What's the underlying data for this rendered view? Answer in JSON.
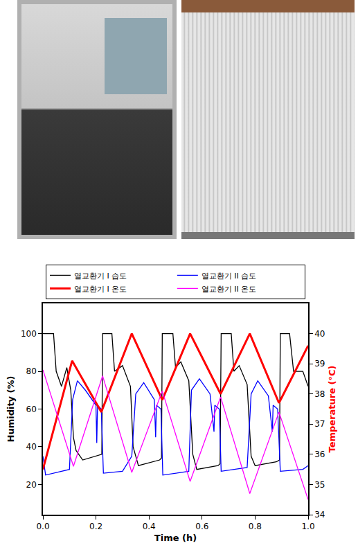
{
  "chart_data": {
    "type": "line",
    "x_label": "Time (h)",
    "y_label": "Humidity (%)",
    "y2_label": "Temperature (°C)",
    "xlim": [
      0,
      1
    ],
    "xticks": [
      {
        "value": 0,
        "label": "0.0"
      },
      {
        "value": 0.2,
        "label": "0.2"
      },
      {
        "value": 0.4,
        "label": "0.4"
      },
      {
        "value": 0.6,
        "label": "0.6"
      },
      {
        "value": 0.8,
        "label": "0.8"
      },
      {
        "value": 1,
        "label": "1.0"
      }
    ],
    "ylim": [
      4,
      116
    ],
    "yticks": [
      20,
      40,
      60,
      80,
      100
    ],
    "y2lim": [
      34,
      41
    ],
    "y2ticks": [
      34,
      35,
      36,
      37,
      38,
      39,
      40
    ],
    "grid": false,
    "legend": "top",
    "series": [
      {
        "name": "열교환기 I 습도",
        "color": "#000000",
        "x": [
          0,
          0.04,
          0.05,
          0.07,
          0.09,
          0.105,
          0.115,
          0.125,
          0.15,
          0.2,
          0.222,
          0.225,
          0.26,
          0.27,
          0.3,
          0.33,
          0.34,
          0.36,
          0.44,
          0.447,
          0.45,
          0.49,
          0.5,
          0.52,
          0.55,
          0.565,
          0.58,
          0.66,
          0.668,
          0.672,
          0.71,
          0.72,
          0.74,
          0.77,
          0.785,
          0.8,
          0.88,
          0.892,
          0.895,
          0.93,
          0.945,
          0.98,
          1.0
        ],
        "values": [
          100,
          100,
          80,
          72,
          82,
          70,
          45,
          38,
          33,
          35,
          36,
          100,
          100,
          80,
          83,
          72,
          40,
          30,
          33,
          34,
          100,
          100,
          82,
          85,
          75,
          36,
          28,
          30,
          31,
          100,
          100,
          80,
          83,
          73,
          35,
          30,
          32,
          33,
          100,
          100,
          80,
          80,
          72
        ]
      },
      {
        "name": "열교환기 II 습도",
        "color": "#0000ff",
        "x": [
          0,
          0.01,
          0.1,
          0.112,
          0.13,
          0.16,
          0.2,
          0.203,
          0.206,
          0.22,
          0.228,
          0.3,
          0.335,
          0.35,
          0.38,
          0.42,
          0.425,
          0.428,
          0.445,
          0.452,
          0.55,
          0.56,
          0.59,
          0.63,
          0.645,
          0.648,
          0.665,
          0.672,
          0.77,
          0.785,
          0.81,
          0.85,
          0.865,
          0.868,
          0.885,
          0.895,
          0.98,
          1.0
        ],
        "values": [
          35,
          25,
          28,
          65,
          75,
          70,
          62,
          42,
          62,
          60,
          26,
          27,
          35,
          68,
          74,
          65,
          45,
          62,
          60,
          25,
          27,
          70,
          76,
          68,
          48,
          62,
          60,
          27,
          29,
          68,
          75,
          67,
          48,
          62,
          60,
          27,
          28,
          30
        ]
      },
      {
        "name": "열교환기 I 온도",
        "color": "#ff0000",
        "axis": "y2",
        "x": [
          0,
          0.11,
          0.22,
          0.335,
          0.45,
          0.555,
          0.67,
          0.78,
          0.89,
          1.0
        ],
        "values": [
          35.5,
          39.1,
          37.4,
          40.0,
          37.8,
          40.0,
          38.0,
          40.0,
          37.7,
          39.6
        ]
      },
      {
        "name": "열교환기 II 온도",
        "color": "#ff00ff",
        "axis": "y2",
        "x": [
          0,
          0.115,
          0.225,
          0.335,
          0.45,
          0.555,
          0.67,
          0.78,
          0.89,
          1.0
        ],
        "values": [
          38.8,
          35.6,
          38.6,
          35.4,
          38.1,
          35.1,
          37.9,
          34.7,
          37.4,
          34.5
        ]
      }
    ]
  }
}
